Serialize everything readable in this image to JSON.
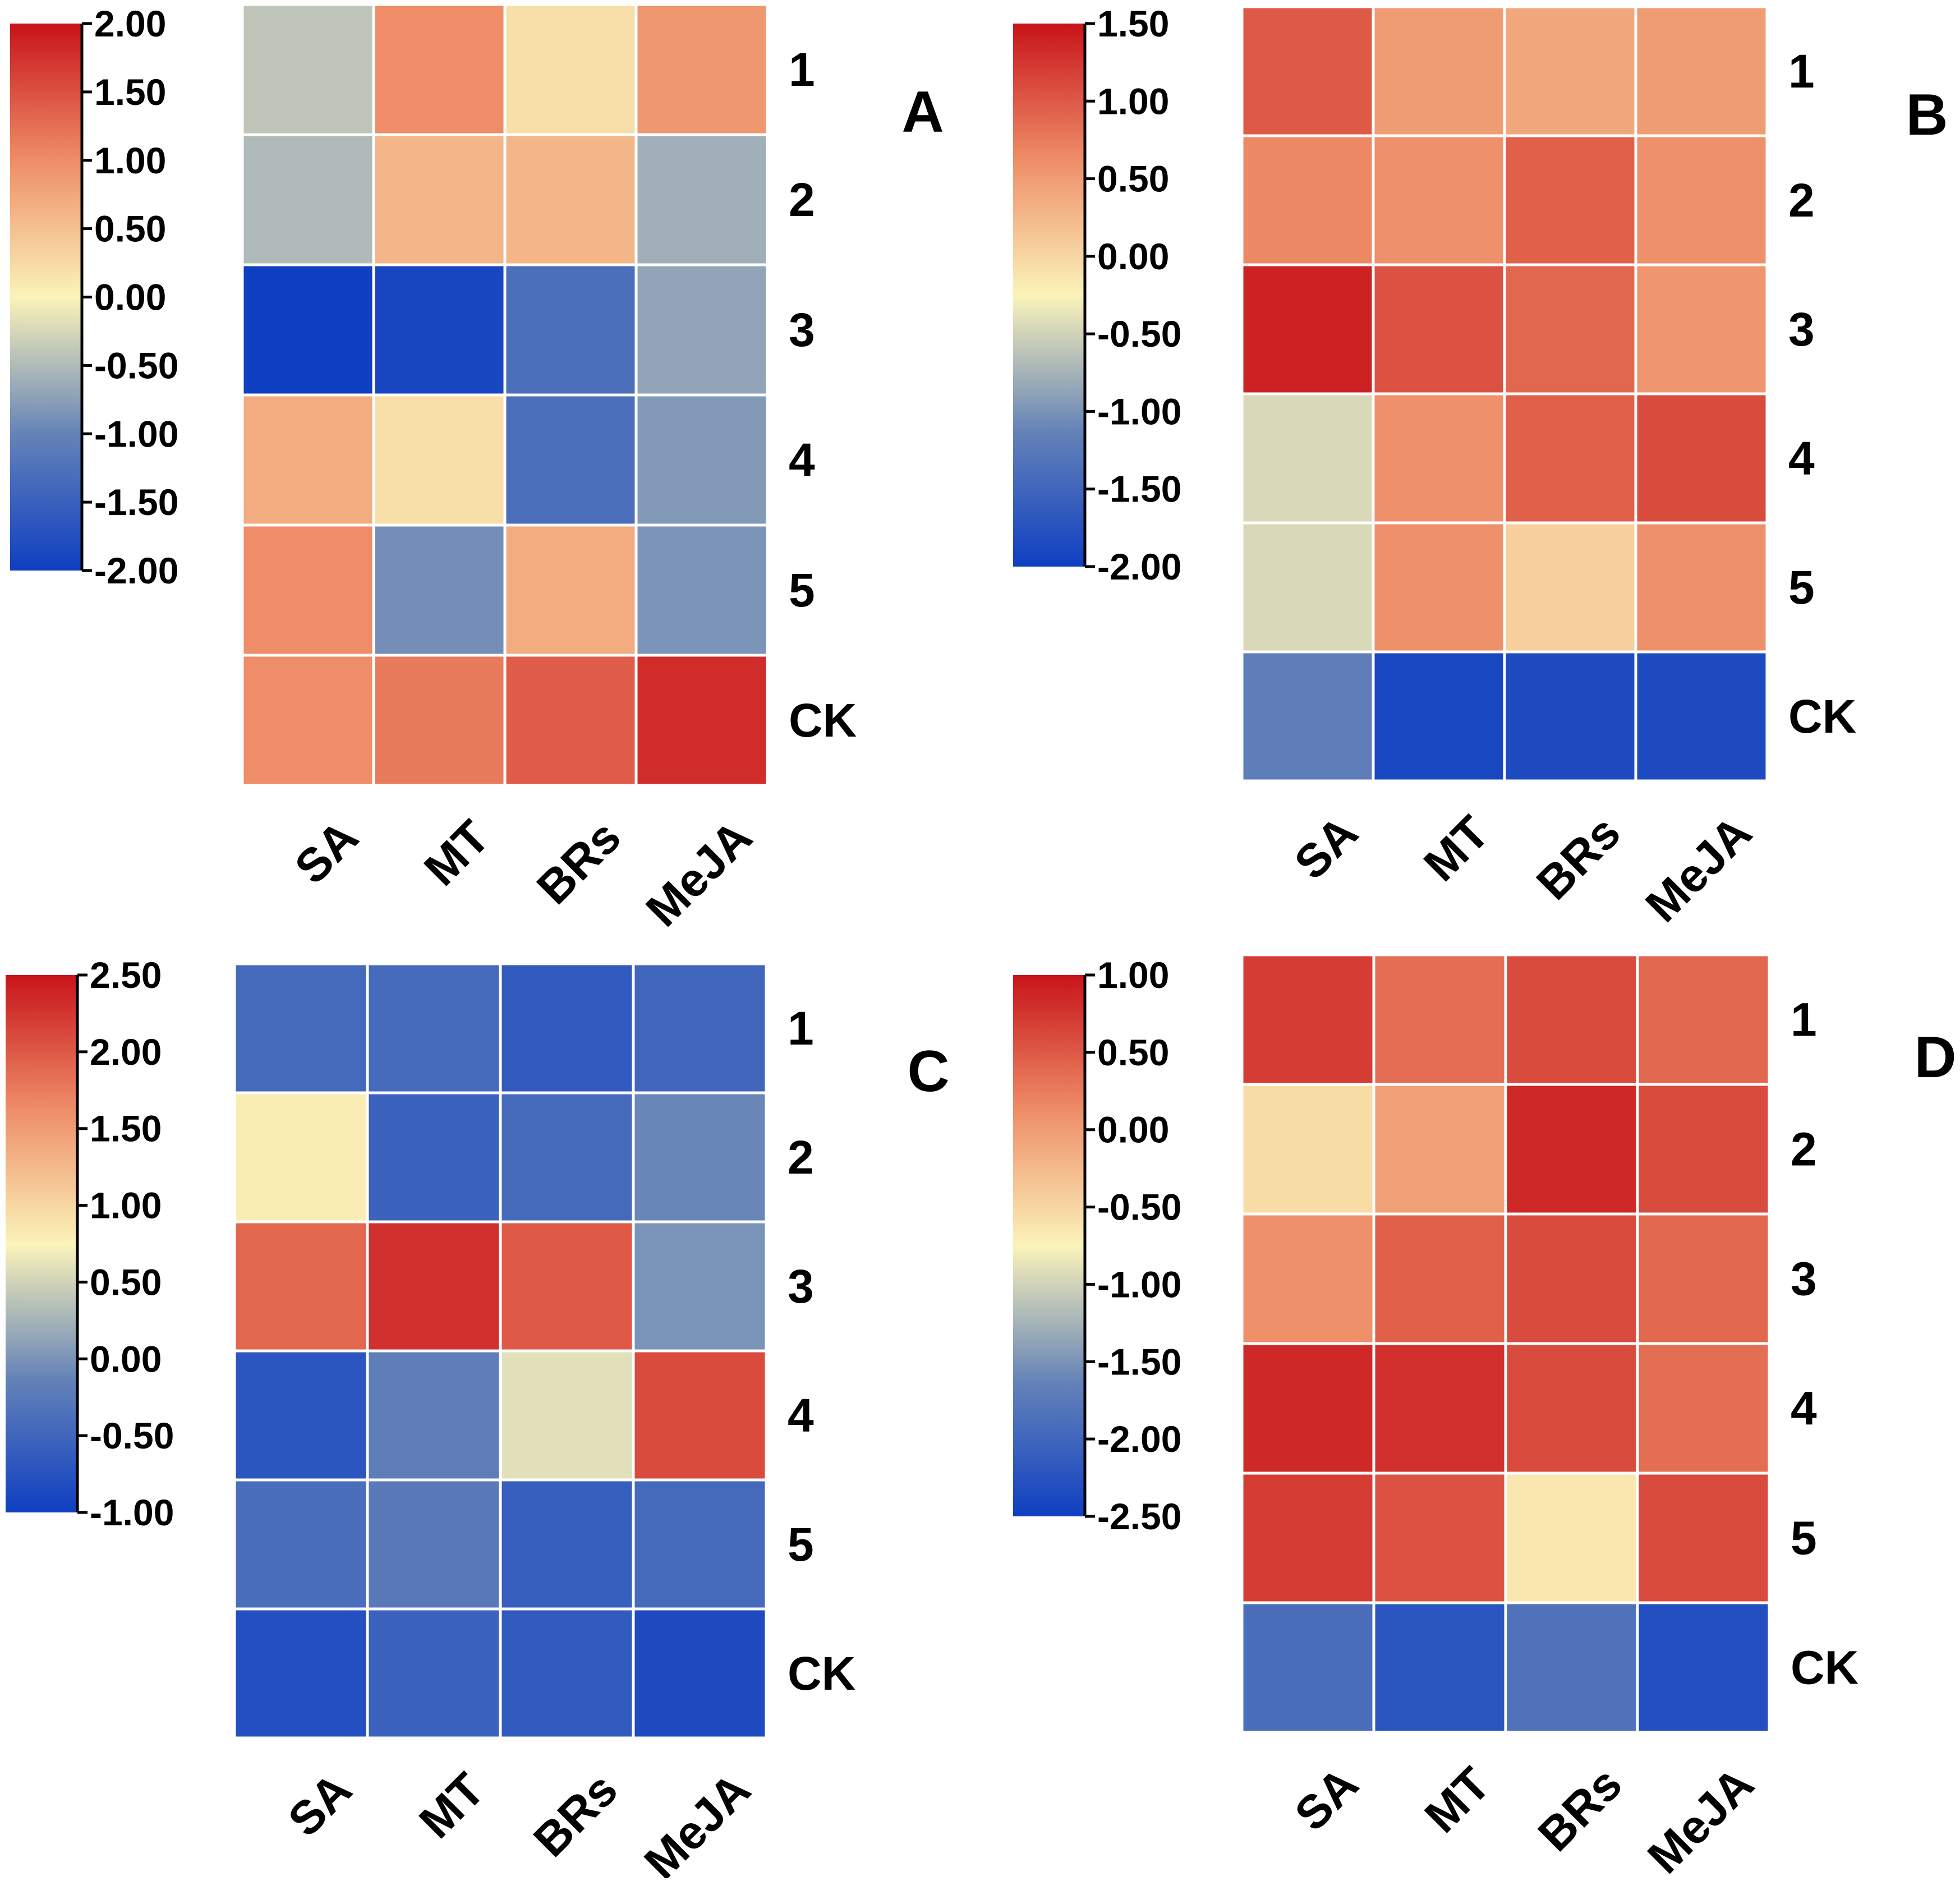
{
  "figure": {
    "panels_label": "Four heatmaps (A-D): treatments SA, MT, BRs, MeJA vs rows 1-5 and CK"
  },
  "chart_data": [
    {
      "type": "heatmap",
      "panel": "A",
      "columns": [
        "SA",
        "MT",
        "BRs",
        "MeJA"
      ],
      "rows": [
        "1",
        "2",
        "3",
        "4",
        "5",
        "CK"
      ],
      "values": [
        [
          -0.4,
          1.0,
          0.2,
          0.9
        ],
        [
          -0.5,
          0.6,
          0.6,
          -0.6
        ],
        [
          -2.0,
          -1.9,
          -1.3,
          -0.7
        ],
        [
          0.7,
          0.2,
          -1.3,
          -0.8
        ],
        [
          1.0,
          -0.9,
          0.7,
          -0.85
        ],
        [
          1.0,
          1.15,
          1.4,
          1.8
        ]
      ],
      "colorbar": {
        "min": -2.0,
        "max": 2.0,
        "ticks": [
          "2.00",
          "1.50",
          "1.00",
          "0.50",
          "0.00",
          "-0.50",
          "-1.00",
          "-1.50",
          "-2.00"
        ]
      }
    },
    {
      "type": "heatmap",
      "panel": "B",
      "columns": [
        "SA",
        "MT",
        "BRs",
        "MeJA"
      ],
      "rows": [
        "1",
        "2",
        "3",
        "4",
        "5",
        "CK"
      ],
      "values": [
        [
          1.0,
          0.5,
          0.4,
          0.5
        ],
        [
          0.65,
          0.6,
          0.95,
          0.6
        ],
        [
          1.4,
          1.05,
          0.9,
          0.55
        ],
        [
          -0.45,
          0.6,
          0.95,
          1.1
        ],
        [
          -0.45,
          0.6,
          0.05,
          0.6
        ],
        [
          -1.2,
          -1.9,
          -1.85,
          -1.85
        ]
      ],
      "colorbar": {
        "min": -2.0,
        "max": 1.5,
        "ticks": [
          "1.50",
          "1.00",
          "0.50",
          "0.00",
          "-0.50",
          "-1.00",
          "-1.50",
          "-2.00"
        ]
      }
    },
    {
      "type": "heatmap",
      "panel": "C",
      "columns": [
        "SA",
        "MT",
        "BRs",
        "MeJA"
      ],
      "rows": [
        "1",
        "2",
        "3",
        "4",
        "5",
        "CK"
      ],
      "values": [
        [
          -0.45,
          -0.45,
          -0.65,
          -0.5
        ],
        [
          0.8,
          -0.55,
          -0.45,
          -0.1
        ],
        [
          1.9,
          2.3,
          2.0,
          0.0
        ],
        [
          -0.7,
          -0.2,
          0.6,
          2.1
        ],
        [
          -0.4,
          -0.25,
          -0.6,
          -0.45
        ],
        [
          -0.8,
          -0.55,
          -0.65,
          -0.85
        ]
      ],
      "colorbar": {
        "min": -1.0,
        "max": 2.5,
        "ticks": [
          "2.50",
          "2.00",
          "1.50",
          "1.00",
          "0.50",
          "0.00",
          "-0.50",
          "-1.00"
        ]
      }
    },
    {
      "type": "heatmap",
      "panel": "D",
      "columns": [
        "SA",
        "MT",
        "BRs",
        "MeJA"
      ],
      "rows": [
        "1",
        "2",
        "3",
        "4",
        "5",
        "CK"
      ],
      "values": [
        [
          0.7,
          0.35,
          0.6,
          0.4
        ],
        [
          -0.55,
          -0.05,
          0.85,
          0.6
        ],
        [
          0.1,
          0.45,
          0.6,
          0.4
        ],
        [
          0.85,
          0.8,
          0.6,
          0.35
        ],
        [
          0.7,
          0.55,
          -0.65,
          0.6
        ],
        [
          -1.9,
          -2.2,
          -1.85,
          -2.3
        ]
      ],
      "colorbar": {
        "min": -2.5,
        "max": 1.0,
        "ticks": [
          "1.00",
          "0.50",
          "0.00",
          "-0.50",
          "-1.00",
          "-1.50",
          "-2.00",
          "-2.50"
        ]
      }
    }
  ]
}
